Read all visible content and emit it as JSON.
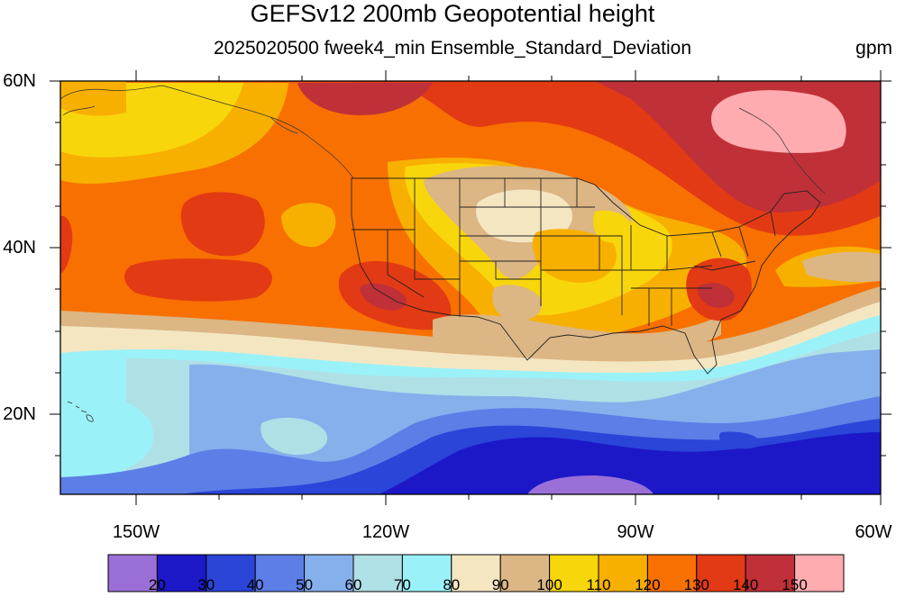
{
  "map": {
    "title": "GEFSv12 200mb Geopotential height",
    "subtitle": "2025020500 fweek4_min Ensemble_Standard_Deviation",
    "units": "gpm",
    "lat_labels": [
      "60N",
      "40N",
      "20N"
    ],
    "lon_labels": [
      "150W",
      "120W",
      "90W",
      "60W"
    ],
    "extent": {
      "lon": [
        -160,
        -62
      ],
      "lat": [
        11,
        60
      ]
    },
    "features": [
      "contour-fill",
      "state-borders",
      "coastlines",
      "hawaii"
    ]
  },
  "legend": {
    "levels": [
      "20",
      "30",
      "40",
      "50",
      "60",
      "70",
      "80",
      "90",
      "100",
      "110",
      "120",
      "130",
      "140",
      "150"
    ],
    "colors": [
      "#9a70d8",
      "#1c18c8",
      "#2a45d8",
      "#5c7ee6",
      "#86b0ec",
      "#afe0e6",
      "#9af2f8",
      "#f5e6c2",
      "#dcb684",
      "#f8d60c",
      "#f8b000",
      "#f87000",
      "#e23a14",
      "#c03038",
      "#ffacb0"
    ]
  }
}
